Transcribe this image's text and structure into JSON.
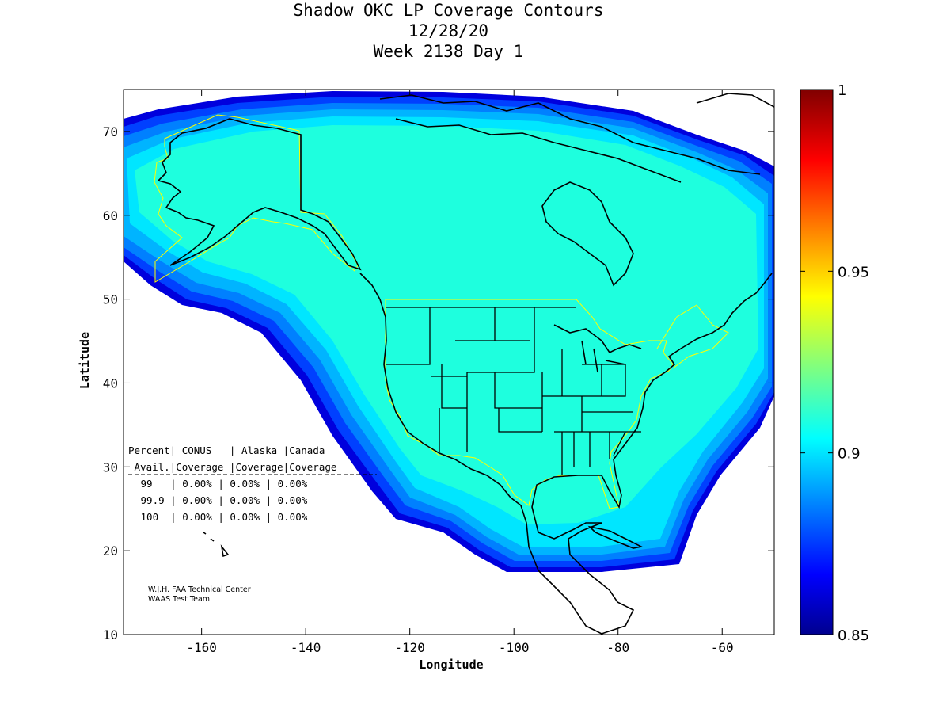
{
  "title": {
    "line1": "Shadow OKC LP Coverage Contours",
    "line2": "12/28/20",
    "line3": "Week 2138 Day 1"
  },
  "axes": {
    "xlabel": "Longitude",
    "ylabel": "Latitude",
    "xticks": [
      "-160",
      "-140",
      "-120",
      "-100",
      "-80",
      "-60"
    ],
    "yticks": [
      "10",
      "20",
      "30",
      "40",
      "50",
      "60",
      "70"
    ],
    "xlim": [
      -175,
      -50
    ],
    "ylim": [
      10,
      75
    ]
  },
  "colorbar": {
    "range": [
      0.85,
      1
    ],
    "ticks": [
      "0.85",
      "0.9",
      "0.95",
      "1"
    ],
    "colormap": "jet"
  },
  "coverage_table": {
    "header1": "Percent| CONUS   | Alaska |Canada",
    "header2": " Avail.|Coverage |Coverage|Coverage",
    "rows": [
      " 99   | 0.00% | 0.00% | 0.00%",
      " 99.9 | 0.00% | 0.00% | 0.00%",
      " 100  | 0.00% | 0.00% | 0.00%"
    ]
  },
  "credits": {
    "line1": "W.J.H. FAA Technical Center",
    "line2": "WAAS Test Team"
  },
  "colors": {
    "coverage_main": "#1effde",
    "coverage_edge_1": "#00e6ff",
    "coverage_edge_2": "#00b4ff",
    "coverage_edge_3": "#0080ff",
    "coverage_edge_4": "#0040ff",
    "coverage_edge_5": "#0000dd",
    "region_outline": "#ffff00",
    "coastline": "#000000"
  }
}
